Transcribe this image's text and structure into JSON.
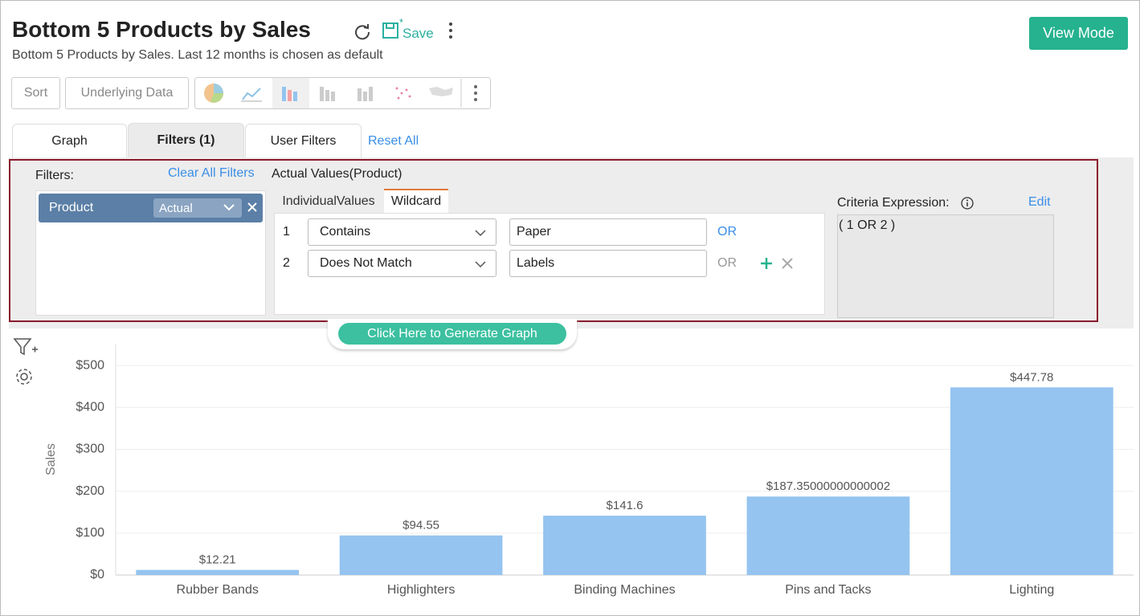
{
  "header": {
    "title": "Bottom 5 Products by Sales",
    "save": "Save",
    "subtitle": "Bottom 5 Products by Sales. Last 12 months is chosen as default",
    "view_mode": "View Mode"
  },
  "toolbar": {
    "sort": "Sort",
    "underlying_data": "Underlying Data"
  },
  "tabs": {
    "graph": "Graph",
    "filters": "Filters (1)",
    "user_filters": "User Filters",
    "reset_all": "Reset All"
  },
  "filter_panel": {
    "filters_label": "Filters:",
    "clear_all": "Clear All Filters",
    "product": "Product",
    "aggregation": "Actual",
    "section_title": "Actual Values(Product)",
    "tab_individual": "IndividualValues",
    "tab_wildcard": "Wildcard",
    "rows": [
      {
        "number": "1",
        "operator": "Contains",
        "value": "Paper",
        "join": "OR"
      },
      {
        "number": "2",
        "operator": "Does Not Match",
        "value": "Labels",
        "join": "OR"
      }
    ],
    "criteria_label": "Criteria Expression:",
    "edit": "Edit",
    "criteria": "( 1 OR 2 )"
  },
  "generate_button": "Click Here to Generate Graph",
  "chart_data": {
    "type": "bar",
    "y_label": "Sales",
    "categories": [
      "Rubber Bands",
      "Highlighters",
      "Binding Machines",
      "Pins and Tacks",
      "Lighting"
    ],
    "values": [
      12.21,
      94.55,
      141.6,
      187.35000000000002,
      447.78
    ],
    "value_labels": [
      "$12.21",
      "$94.55",
      "$141.6",
      "$187.35000000000002",
      "$447.78"
    ],
    "color": "#94c4ef",
    "ylim": [
      0,
      550
    ],
    "yticks": [
      {
        "value": 0,
        "label": "$0"
      },
      {
        "value": 100,
        "label": "$100"
      },
      {
        "value": 200,
        "label": "$200"
      },
      {
        "value": 300,
        "label": "$300"
      },
      {
        "value": 400,
        "label": "$400"
      },
      {
        "value": 500,
        "label": "$500"
      }
    ],
    "grid": true
  }
}
